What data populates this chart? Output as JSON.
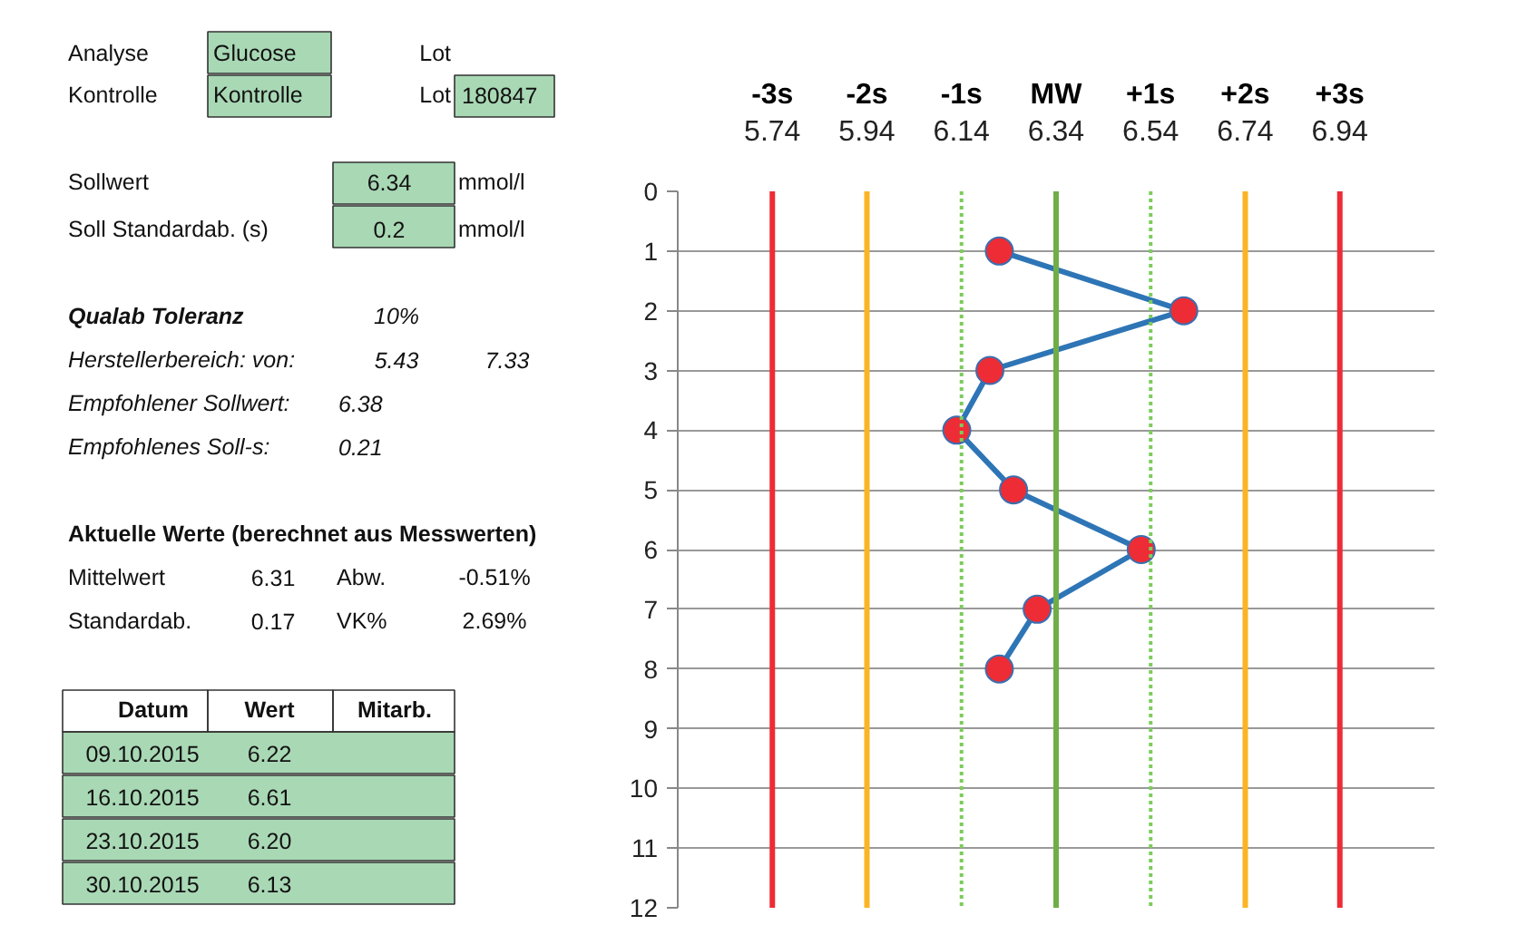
{
  "chart_data": {
    "type": "line",
    "x": [
      6.22,
      6.61,
      6.2,
      6.13,
      6.25,
      6.52,
      6.3,
      6.22
    ],
    "series": [
      {
        "color": "#2e75b6",
        "colors": [
          "#ee2c35",
          "#ee2c35",
          "#ee2c35",
          "#ee2c35",
          "#ee2c35",
          "#ee2c35",
          "#ee2c35",
          "#ee2c35"
        ],
        "values": [
          1,
          2,
          3,
          4,
          5,
          6,
          7,
          8
        ]
      }
    ],
    "xlim": [
      5.54,
      7.14
    ],
    "ylim": [
      12,
      0
    ],
    "yticks": [
      0,
      1,
      2,
      3,
      4,
      5,
      6,
      7,
      8,
      9,
      10,
      11,
      12
    ],
    "xticks": [
      5.74,
      5.94,
      6.14,
      6.34,
      6.54,
      6.74,
      6.94
    ],
    "grid": "y",
    "marker": "circle",
    "line_style": "solid",
    "ref_lines": [
      {
        "axis": "x",
        "value": 5.74,
        "label": "-3s",
        "color": "#ee2c35",
        "line_style": "solid"
      },
      {
        "axis": "x",
        "value": 5.94,
        "label": "-2s",
        "color": "#fbb424",
        "line_style": "solid"
      },
      {
        "axis": "x",
        "value": 6.14,
        "label": "-1s",
        "color": "#7ccc5c",
        "line_style": "dotted"
      },
      {
        "axis": "x",
        "value": 6.34,
        "label": "MW",
        "color": "#70ad47",
        "line_style": "solid"
      },
      {
        "axis": "x",
        "value": 6.54,
        "label": "+1s",
        "color": "#7ccc5c",
        "line_style": "dotted"
      },
      {
        "axis": "x",
        "value": 6.74,
        "label": "+2s",
        "color": "#fbb424",
        "line_style": "solid"
      },
      {
        "axis": "x",
        "value": 6.94,
        "label": "+3s",
        "color": "#ee2c35",
        "line_style": "solid"
      }
    ],
    "annotations": [
      "Analyse",
      "Glucose",
      "Lot",
      "Kontrolle",
      "Kontrolle",
      "Lot",
      "180847",
      "Sollwert",
      "6.34",
      "mmol/l",
      "Soll Standardab. (s)",
      "0.2",
      "mmol/l",
      "Qualab Toleranz",
      "10%",
      "Herstellerbereich:  von:",
      "5.43",
      "7.33",
      "Empfohlener Sollwert:",
      "6.38",
      "Empfohlenes Soll-s:",
      "0.21",
      "Aktuelle Werte (berechnet aus Messwerten)",
      "Mittelwert",
      "6.31",
      "Abw.",
      "-0.51%",
      "Standardab.",
      "0.17",
      "VK%",
      "2.69%",
      "Datum",
      "Wert",
      "Mitarb.",
      "09.10.2015",
      "6.22",
      "16.10.2015",
      "6.61",
      "23.10.2015",
      "6.20",
      "30.10.2015",
      "6.13"
    ]
  }
}
